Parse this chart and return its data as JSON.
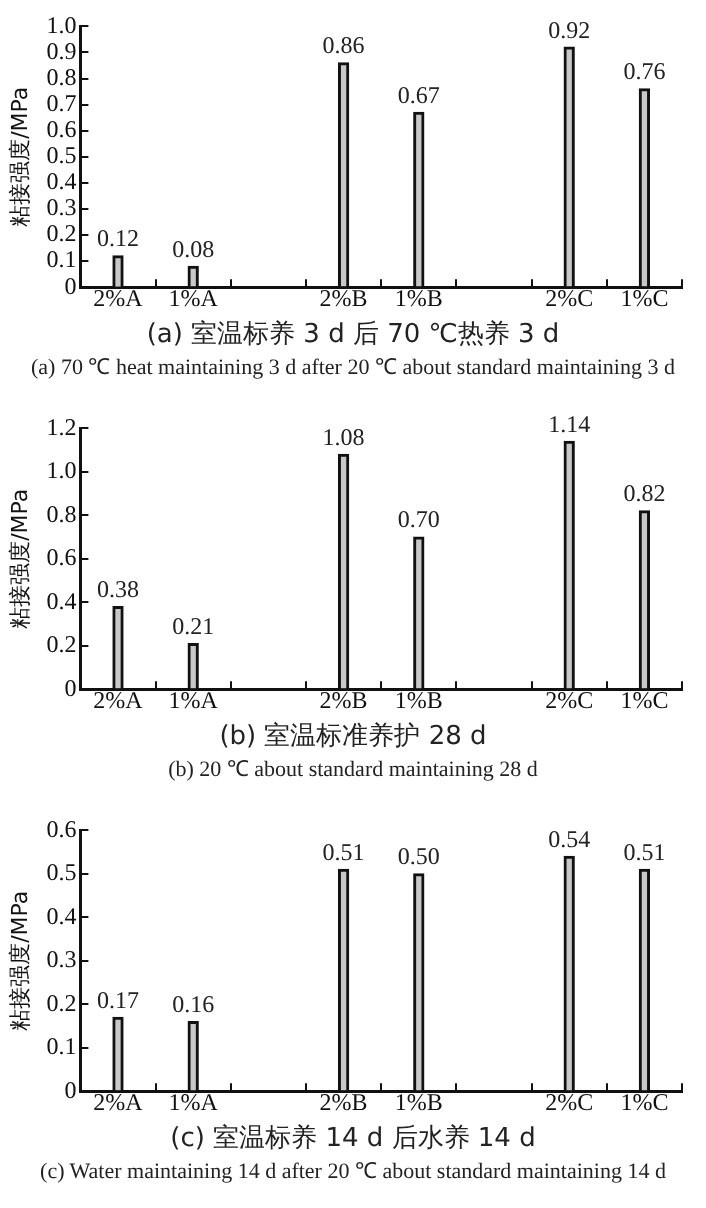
{
  "chart_data": [
    {
      "type": "bar",
      "title": "(a) 室温标养 3 d 后 70 ℃热养 3 d",
      "subtitle": "(a) 70 ℃ heat maintaining 3 d after 20 ℃ about standard maintaining 3 d",
      "ylabel": "粘接强度/MPa",
      "categories": [
        "2%A",
        "1%A",
        null,
        "2%B",
        "1%B",
        null,
        "2%C",
        "1%C"
      ],
      "values": [
        0.12,
        0.08,
        null,
        0.86,
        0.67,
        null,
        0.92,
        0.76
      ],
      "color": "#c8c8c8",
      "ylim": [
        0,
        1
      ],
      "yticks": [
        0,
        0.1,
        0.2,
        0.3,
        0.4,
        0.5,
        0.6,
        0.7,
        0.8,
        0.9,
        {
          "value": 1,
          "label": "1.0"
        }
      ],
      "data_labels": true,
      "grid": false,
      "legend": false
    },
    {
      "type": "bar",
      "title": "(b) 室温标准养护 28 d",
      "subtitle": "(b) 20 ℃ about standard maintaining 28 d",
      "ylabel": "粘接强度/MPa",
      "categories": [
        "2%A",
        "1%A",
        null,
        "2%B",
        "1%B",
        null,
        "2%C",
        "1%C"
      ],
      "values": [
        0.38,
        0.21,
        null,
        1.08,
        0.7,
        null,
        1.14,
        0.82
      ],
      "value_labels": [
        "0.38",
        "0.21",
        null,
        "1.08",
        "0.70",
        null,
        "1.14",
        "0.82"
      ],
      "color": "#c8c8c8",
      "ylim": [
        0,
        1.2
      ],
      "yticks": [
        0,
        0.2,
        0.4,
        0.6,
        0.8,
        {
          "value": 1,
          "label": "1.0"
        },
        1.2
      ],
      "grid": false,
      "legend": false
    },
    {
      "type": "bar",
      "title": "(c) 室温标养 14 d 后水养 14 d",
      "subtitle": "(c) Water maintaining 14 d after 20 ℃ about standard maintaining 14 d",
      "ylabel": "粘接强度/MPa",
      "categories": [
        "2%A",
        "1%A",
        null,
        "2%B",
        "1%B",
        null,
        "2%C",
        "1%C"
      ],
      "values": [
        0.17,
        0.16,
        null,
        0.51,
        0.5,
        null,
        0.54,
        0.51
      ],
      "value_labels": [
        "0.17",
        "0.16",
        null,
        "0.51",
        "0.50",
        null,
        "0.54",
        "0.51"
      ],
      "color": "#c8c8c8",
      "ylim": [
        0,
        0.6
      ],
      "yticks": [
        0,
        0.1,
        0.2,
        0.3,
        0.4,
        0.5,
        0.6
      ],
      "grid": false,
      "legend": false
    }
  ]
}
